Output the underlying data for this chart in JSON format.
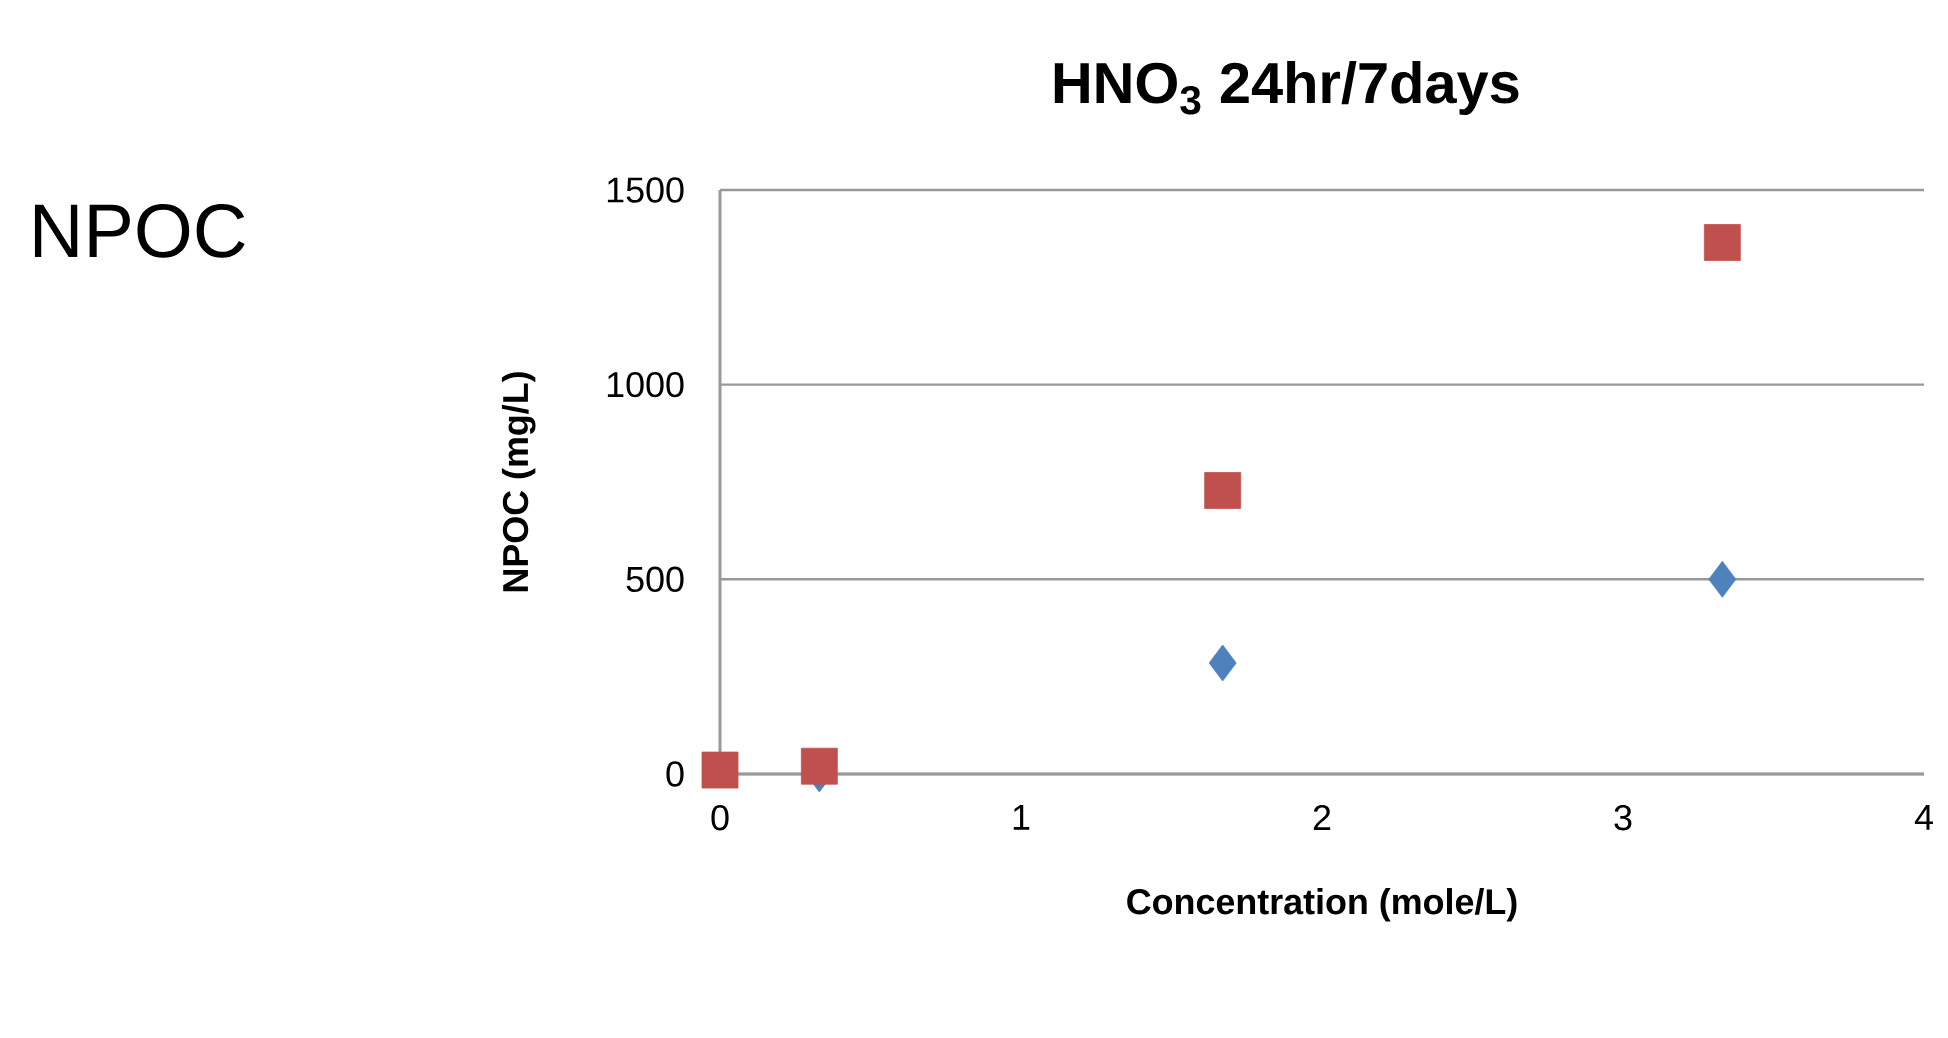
{
  "chart_data": {
    "type": "scatter",
    "title": "HNO$_{3}$ 24hr/7days",
    "xlabel": "Concentration (mole/L)",
    "ylabel": "NPOC (mg/L)",
    "annotations": [
      "NPOC"
    ],
    "x": [
      0,
      0.33,
      1.67,
      3.33
    ],
    "series": [
      {
        "color": "#4f81bd",
        "marker": "diamond",
        "values": [
          null,
          0,
          285,
          500
        ]
      },
      {
        "color": "#c0504d",
        "marker": "square",
        "values": [
          10,
          20,
          728,
          1365
        ]
      }
    ],
    "xlim": [
      0,
      4
    ],
    "xticks": [
      0,
      1,
      2,
      3,
      4
    ],
    "ylim": [
      0,
      1500
    ],
    "yticks": [
      0,
      500,
      1000,
      1500
    ],
    "grid": "y"
  }
}
